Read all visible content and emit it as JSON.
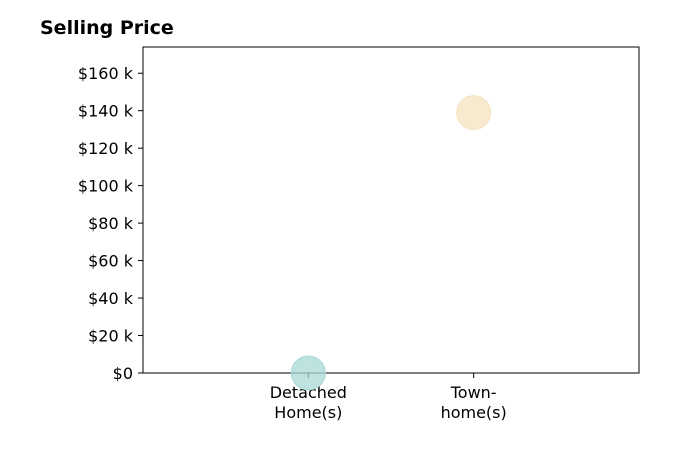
{
  "chart_data": {
    "type": "scatter",
    "title": "Selling Price",
    "xlabel": "",
    "ylabel": "",
    "categories": [
      [
        "Detached",
        "Home(s)"
      ],
      [
        "Town-",
        "home(s)"
      ]
    ],
    "points": [
      {
        "category_index": 0,
        "value": 0,
        "color": "#a8d8d4"
      },
      {
        "category_index": 1,
        "value": 139000,
        "color": "#f5e3bf"
      }
    ],
    "ylim": [
      0,
      174000
    ],
    "xlim": [
      -1,
      2
    ],
    "yticks": [
      0,
      20000,
      40000,
      60000,
      80000,
      100000,
      120000,
      140000,
      160000
    ],
    "ytick_labels": [
      "$0",
      "$20 k",
      "$40 k",
      "$60 k",
      "$80 k",
      "$100 k",
      "$120 k",
      "$140 k",
      "$160 k"
    ],
    "grid": false,
    "legend": "none"
  }
}
